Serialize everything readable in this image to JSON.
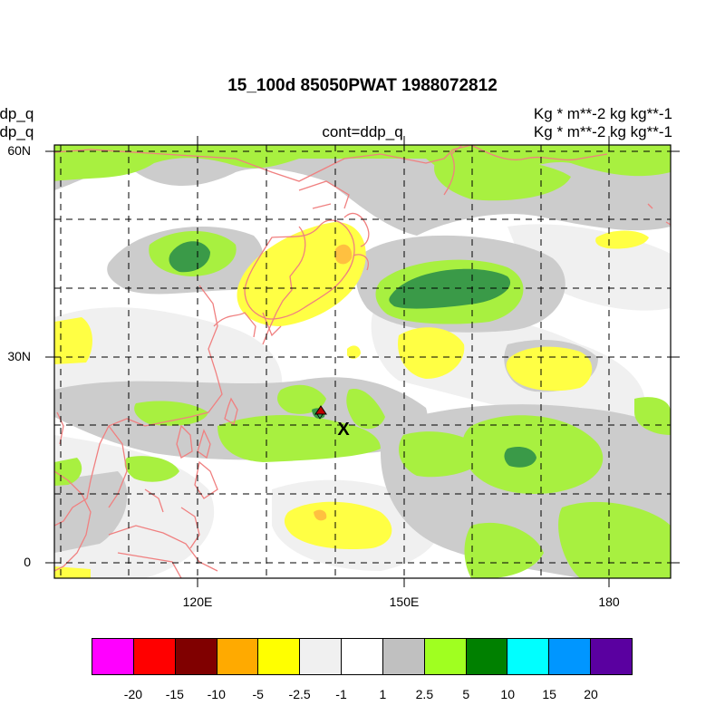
{
  "title": "15_100d 85050PWAT  1988072812",
  "left_labels": [
    "ddp_q",
    "ddp_q"
  ],
  "center_label": "cont=ddp_q",
  "right_labels": [
    "Kg   * m**-2 kg kg**-1",
    "Kg   * m**-2 kg kg**-1"
  ],
  "axes": {
    "y_ticks": [
      "60N",
      "30N",
      "0"
    ],
    "x_ticks": [
      "120E",
      "150E",
      "180"
    ]
  },
  "marker": "X",
  "colorbar": {
    "colors": [
      "#ff00ff",
      "#ff0000",
      "#800000",
      "#ffaa00",
      "#ffff00",
      "#f0f0f0",
      "#ffffff",
      "#c0c0c0",
      "#a0ff20",
      "#008000",
      "#00ffff",
      "#0096ff",
      "#5a00a0"
    ],
    "labels": [
      "-20",
      "-15",
      "-10",
      "-5",
      "-2.5",
      "-1",
      "1",
      "2.5",
      "5",
      "10",
      "15",
      "20"
    ]
  },
  "palette": {
    "gray": "#cccccc",
    "lightgray": "#f0f0f0",
    "lightgreen": "#a8f040",
    "darkgreen": "#3a9a48",
    "yellow": "#ffff44",
    "orange": "#ffc040",
    "coast": "#f08080"
  }
}
